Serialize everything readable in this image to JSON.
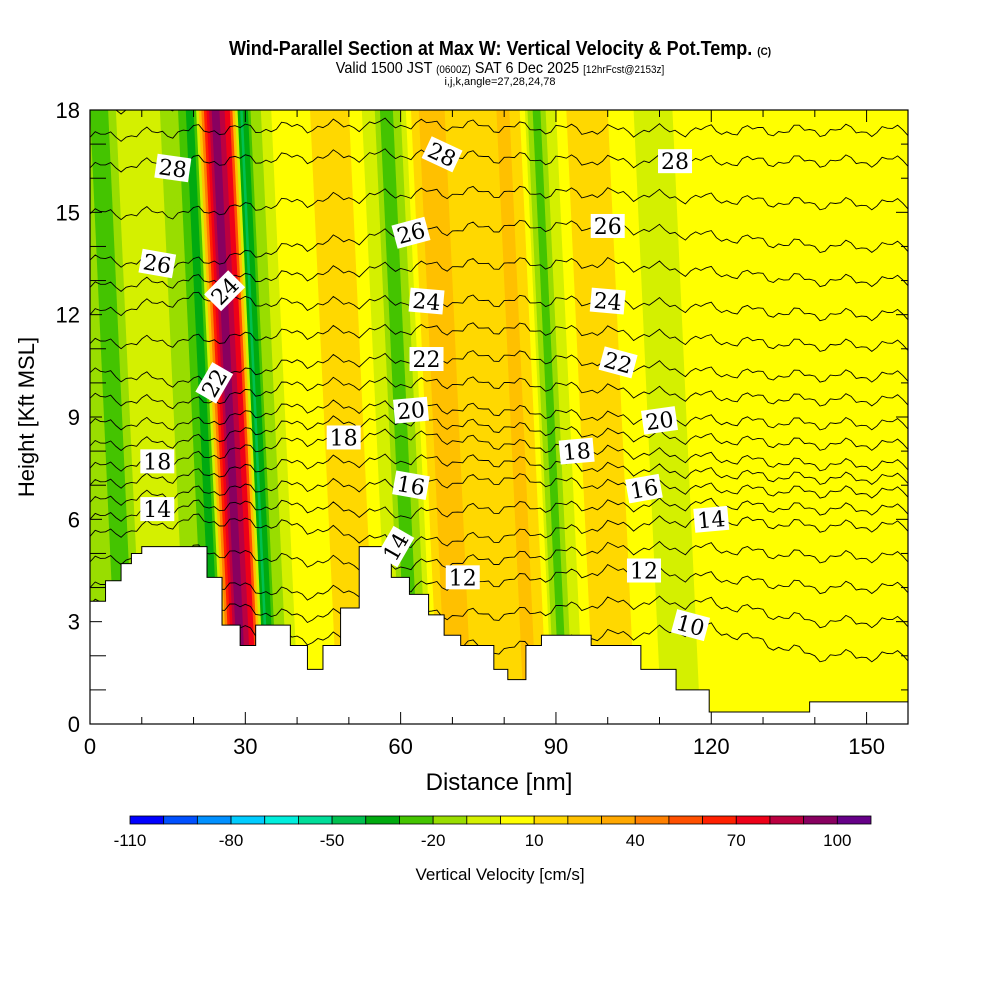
{
  "chart_data": {
    "type": "heatmap",
    "title": "Wind-Parallel Section at Max W: Vertical Velocity & Pot.Temp.",
    "copyright": "(C)",
    "subtitle": {
      "valid": "Valid 1500 JST",
      "utc": "(0600Z)",
      "date": "SAT 6 Dec 2025",
      "fcst": "[12hrFcst@2153z]"
    },
    "indices": "i,j,k,angle=27,28,24,78",
    "xlabel": "Distance [nm]",
    "ylabel": "Height [Kft MSL]",
    "xlim": [
      0,
      158
    ],
    "ylim": [
      0,
      18
    ],
    "xticks": [
      "0",
      "30",
      "60",
      "90",
      "120",
      "150"
    ],
    "yticks": [
      "0",
      "3",
      "6",
      "9",
      "12",
      "15",
      "18"
    ],
    "colorbar": {
      "label": "Vertical Velocity [cm/s]",
      "range": [
        -110,
        110
      ],
      "step": 10,
      "tick_labels": [
        "-110",
        "-80",
        "-50",
        "-20",
        "10",
        "40",
        "70",
        "100"
      ],
      "colors": [
        "#0000ff",
        "#0050ff",
        "#0090ff",
        "#00ccff",
        "#00eedd",
        "#00dd99",
        "#00c050",
        "#00aa10",
        "#44c400",
        "#99dd00",
        "#d4f000",
        "#ffff00",
        "#ffd800",
        "#ffc000",
        "#ffa800",
        "#ff8000",
        "#ff5000",
        "#ff2000",
        "#ee0018",
        "#bb0040",
        "#880060",
        "#660088"
      ]
    },
    "vertical_velocity_profile": {
      "note_units": "cm/s by distance (nm)",
      "x": [
        0,
        2,
        5,
        10,
        17,
        20,
        22,
        24,
        27,
        29,
        31,
        35,
        40,
        45,
        50,
        55,
        57,
        60,
        62,
        65,
        70,
        75,
        80,
        83,
        86,
        88,
        92,
        95,
        100,
        105,
        110,
        115,
        120,
        125,
        130,
        140,
        150,
        158
      ],
      "w": [
        -20,
        -30,
        -10,
        0,
        -20,
        -40,
        60,
        100,
        70,
        -50,
        -20,
        0,
        5,
        15,
        10,
        -10,
        -30,
        -10,
        10,
        30,
        15,
        10,
        25,
        10,
        -30,
        -10,
        10,
        20,
        10,
        0,
        -5,
        5,
        10,
        0,
        10,
        5,
        10,
        5
      ]
    },
    "terrain": {
      "x": [
        0,
        3,
        3,
        6,
        6,
        8,
        8,
        10,
        10,
        22.6,
        22.6,
        25.5,
        25.5,
        29,
        29,
        32,
        32,
        38.7,
        38.7,
        42,
        42,
        45,
        45,
        48.4,
        48.4,
        52,
        52,
        58.2,
        58.2,
        61.7,
        61.7,
        65.4,
        65.4,
        68.4,
        68.4,
        71.6,
        71.6,
        78,
        78,
        80.7,
        80.7,
        84.2,
        84.2,
        87.2,
        87.2,
        96.8,
        96.8,
        106.4,
        106.4,
        113.2,
        113.2,
        119.6,
        119.6,
        139,
        139,
        158
      ],
      "h": [
        3.6,
        3.6,
        4.2,
        4.2,
        4.7,
        4.7,
        5.0,
        5.0,
        5.2,
        5.2,
        4.3,
        4.3,
        2.9,
        2.9,
        2.3,
        2.3,
        2.9,
        2.9,
        2.3,
        2.3,
        1.6,
        1.6,
        2.3,
        2.3,
        3.4,
        3.4,
        5.2,
        5.2,
        4.3,
        4.3,
        3.8,
        3.8,
        3.2,
        3.2,
        2.6,
        2.6,
        2.3,
        2.3,
        1.6,
        1.6,
        1.3,
        1.3,
        2.3,
        2.3,
        2.6,
        2.6,
        2.3,
        2.3,
        1.6,
        1.6,
        1.0,
        1.0,
        0.35,
        0.35,
        0.65,
        0.65
      ]
    },
    "theta_contours": {
      "x": [
        0,
        20,
        40,
        60,
        80,
        100,
        120,
        140,
        158
      ],
      "levels": [
        {
          "value": 10,
          "h": [
            3.0,
            3.0,
            2.5,
            2.5,
            2.2,
            2.6,
            2.8,
            2.0,
            2.0
          ]
        },
        {
          "value": 12,
          "h": [
            4.0,
            4.2,
            3.8,
            4.0,
            4.2,
            4.5,
            4.3,
            4.0,
            4.0
          ]
        },
        {
          "value": 14,
          "h": [
            5.5,
            6.0,
            5.8,
            5.3,
            5.5,
            5.8,
            6.0,
            5.8,
            5.8
          ]
        },
        {
          "value": 16,
          "h": [
            6.5,
            6.8,
            7.0,
            7.0,
            7.2,
            7.0,
            6.9,
            6.8,
            6.8
          ]
        },
        {
          "value": 18,
          "h": [
            7.5,
            7.8,
            8.3,
            8.5,
            8.2,
            8.0,
            7.8,
            7.6,
            7.6
          ]
        },
        {
          "value": 20,
          "h": [
            8.8,
            8.8,
            9.3,
            9.3,
            9.2,
            9.0,
            8.9,
            8.8,
            8.8
          ]
        },
        {
          "value": 22,
          "h": [
            10.3,
            10.0,
            10.6,
            10.7,
            10.8,
            10.6,
            10.3,
            10.2,
            10.2
          ]
        },
        {
          "value": 24,
          "h": [
            12.0,
            12.5,
            12.3,
            12.4,
            12.4,
            12.4,
            12.2,
            12.0,
            12.0
          ]
        },
        {
          "value": 26,
          "h": [
            13.6,
            13.5,
            14.0,
            14.4,
            14.6,
            14.6,
            14.3,
            14.0,
            14.0
          ]
        },
        {
          "value": 28,
          "h": [
            16.3,
            16.5,
            16.6,
            16.7,
            16.6,
            16.5,
            16.5,
            16.5,
            16.5
          ]
        }
      ],
      "labels": [
        {
          "text": "28",
          "x": 16,
          "h": 16.3,
          "rot": 8
        },
        {
          "text": "28",
          "x": 68,
          "h": 16.7,
          "rot": 25
        },
        {
          "text": "28",
          "x": 113,
          "h": 16.5,
          "rot": 0
        },
        {
          "text": "26",
          "x": 13,
          "h": 13.5,
          "rot": 10
        },
        {
          "text": "26",
          "x": 62,
          "h": 14.4,
          "rot": -15
        },
        {
          "text": "26",
          "x": 100,
          "h": 14.6,
          "rot": 0
        },
        {
          "text": "24",
          "x": 26,
          "h": 12.7,
          "rot": -45
        },
        {
          "text": "24",
          "x": 65,
          "h": 12.4,
          "rot": 5
        },
        {
          "text": "24",
          "x": 100,
          "h": 12.4,
          "rot": 5
        },
        {
          "text": "22",
          "x": 24,
          "h": 10.0,
          "rot": -60
        },
        {
          "text": "22",
          "x": 65,
          "h": 10.7,
          "rot": 0
        },
        {
          "text": "22",
          "x": 102,
          "h": 10.6,
          "rot": 15
        },
        {
          "text": "20",
          "x": 62,
          "h": 9.2,
          "rot": -5
        },
        {
          "text": "20",
          "x": 110,
          "h": 8.9,
          "rot": -8
        },
        {
          "text": "18",
          "x": 13,
          "h": 7.7,
          "rot": 0
        },
        {
          "text": "18",
          "x": 49,
          "h": 8.4,
          "rot": 0
        },
        {
          "text": "18",
          "x": 94,
          "h": 8.0,
          "rot": -5
        },
        {
          "text": "16",
          "x": 62,
          "h": 7.0,
          "rot": 10
        },
        {
          "text": "16",
          "x": 107,
          "h": 6.9,
          "rot": -10
        },
        {
          "text": "14",
          "x": 13,
          "h": 6.3,
          "rot": 0
        },
        {
          "text": "14",
          "x": 59,
          "h": 5.2,
          "rot": -60
        },
        {
          "text": "14",
          "x": 120,
          "h": 6.0,
          "rot": -5
        },
        {
          "text": "12",
          "x": 72,
          "h": 4.3,
          "rot": 0
        },
        {
          "text": "12",
          "x": 107,
          "h": 4.5,
          "rot": 0
        },
        {
          "text": "10",
          "x": 116,
          "h": 2.9,
          "rot": 15
        }
      ]
    }
  }
}
